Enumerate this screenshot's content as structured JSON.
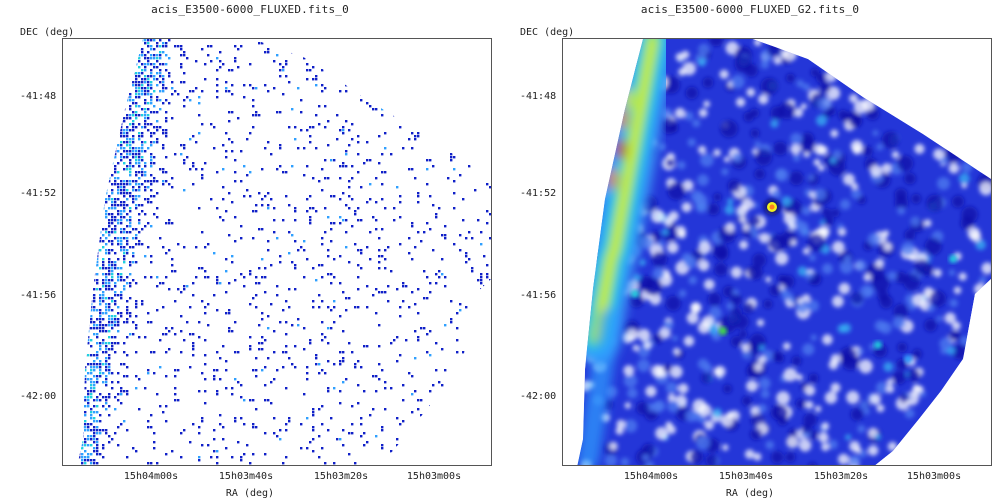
{
  "panels": [
    {
      "title": "acis_E3500-6000_FLUXED.fits_0",
      "xlabel": "RA (deg)",
      "ylabel": "DEC (deg)",
      "rendering": "unsmoothed-counts"
    },
    {
      "title": "acis_E3500-6000_FLUXED_G2.fits_0",
      "xlabel": "RA (deg)",
      "ylabel": "DEC (deg)",
      "rendering": "gaussian-smoothed"
    }
  ],
  "x_ticks": [
    "15h04m00s",
    "15h03m40s",
    "15h03m20s",
    "15h03m00s"
  ],
  "y_ticks": [
    "-41:48",
    "-41:52",
    "-41:56",
    "-42:00"
  ],
  "colors": {
    "low": "#1020c8",
    "mid": "#2ea0ff",
    "cyan": "#20d0e0",
    "green": "#40e040",
    "yellow": "#f0f020",
    "orange": "#ff8020",
    "red": "#e02020",
    "background": "#ffffff"
  }
}
